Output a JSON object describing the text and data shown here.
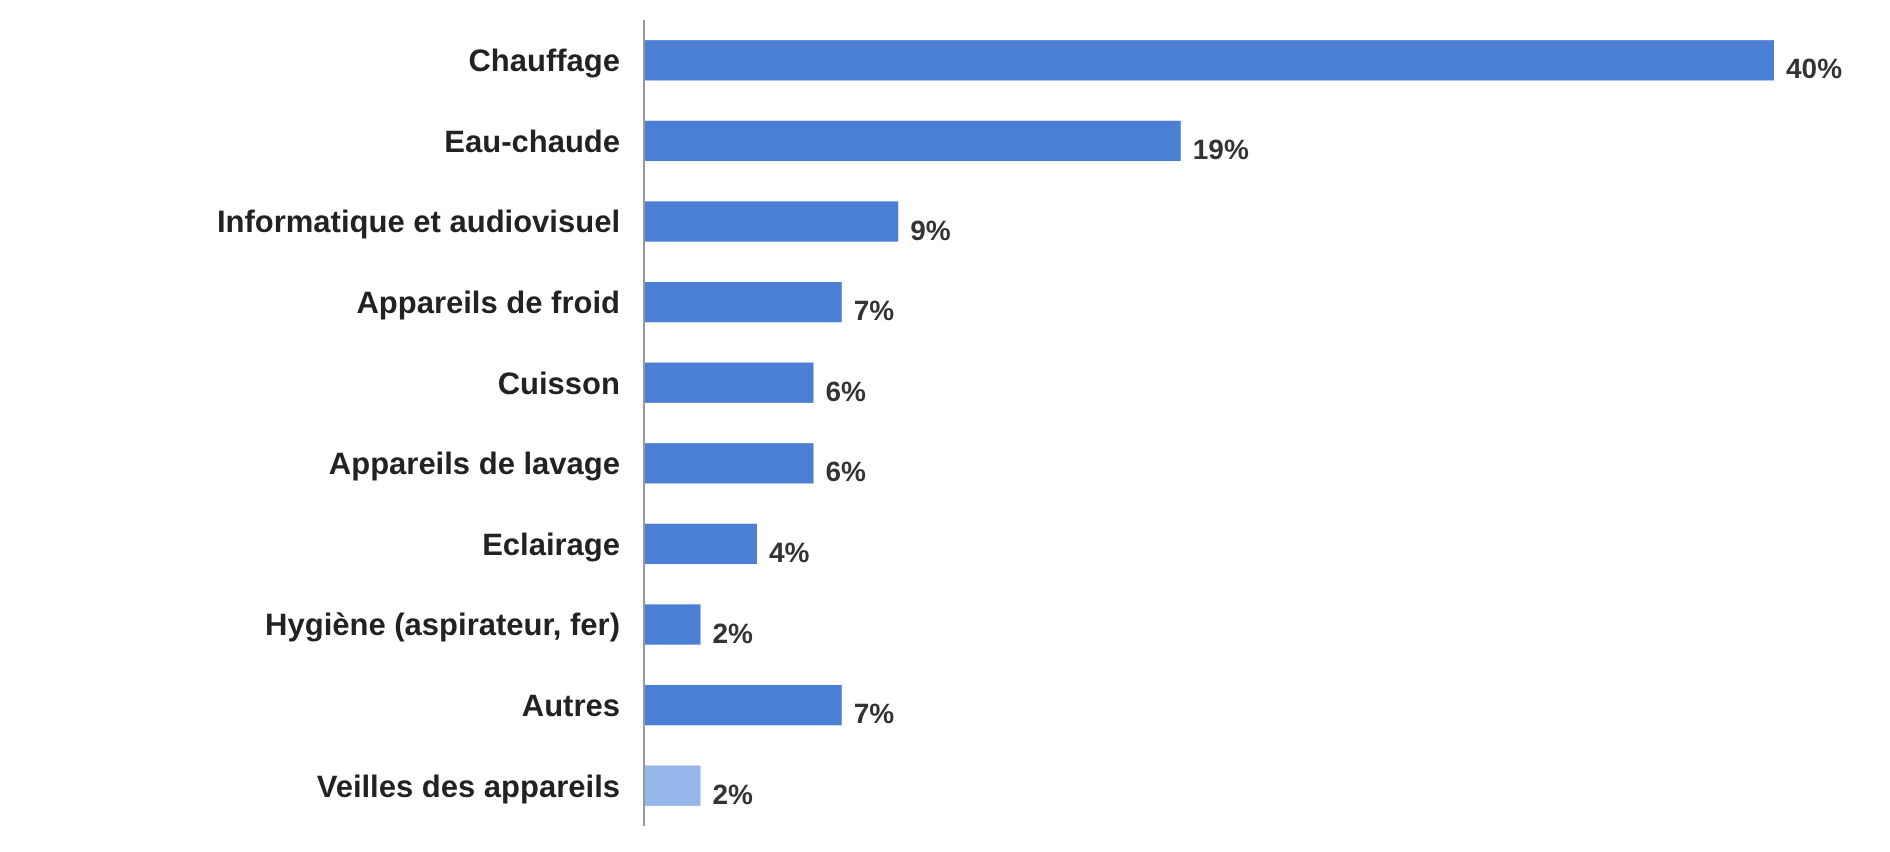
{
  "chart_data": {
    "type": "bar",
    "orientation": "horizontal",
    "categories": [
      "Chauffage",
      "Eau-chaude",
      "Informatique et audiovisuel",
      "Appareils de froid",
      "Cuisson",
      "Appareils de lavage",
      "Eclairage",
      "Hygiène (aspirateur, fer)",
      "Autres",
      "Veilles des appareils"
    ],
    "values": [
      40,
      19,
      9,
      7,
      6,
      6,
      4,
      2,
      7,
      2
    ],
    "colors": [
      "#4a7fd4",
      "#4a7fd4",
      "#4a7fd4",
      "#4a7fd4",
      "#4a7fd4",
      "#4a7fd4",
      "#4a7fd4",
      "#4a7fd4",
      "#4a7fd4",
      "#94b6e8"
    ],
    "value_labels": [
      "40%",
      "19%",
      "9%",
      "7%",
      "6%",
      "6%",
      "4%",
      "2%",
      "7%",
      "2%"
    ]
  }
}
